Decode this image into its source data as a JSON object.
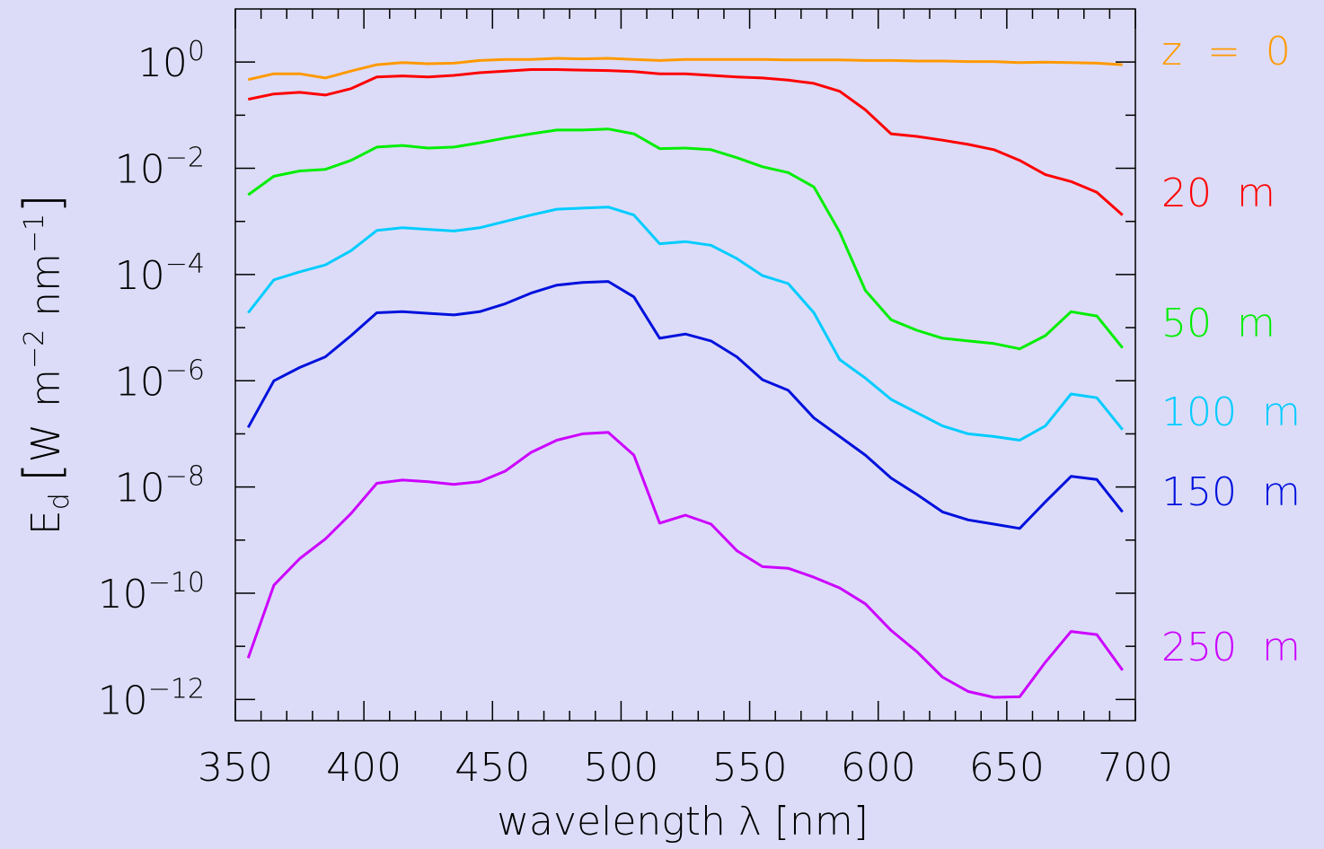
{
  "chart_data": {
    "type": "line",
    "xlabel": "wavelength λ [nm]",
    "ylabel": "E_d [W m^-2 nm^-1]",
    "ylabel_parts": {
      "main": "E",
      "sub": "d",
      "bracket_open": "[",
      "w": "W",
      "m": "m",
      "exp1": "−2",
      "nm": "nm",
      "exp2": "−1",
      "bracket_close": "]"
    },
    "xlim": [
      350,
      700
    ],
    "ylim_log10": [
      -12.4,
      1.0
    ],
    "y_scale": "log",
    "grid": false,
    "xticks": [
      350,
      400,
      450,
      500,
      550,
      600,
      650,
      700
    ],
    "xtick_labels": [
      "350",
      "400",
      "450",
      "500",
      "550",
      "600",
      "650",
      "700"
    ],
    "yticks_log10": [
      0,
      -2,
      -4,
      -6,
      -8,
      -10,
      -12
    ],
    "ytick_labels": [
      {
        "base": "10",
        "exp": "0"
      },
      {
        "base": "10",
        "exp": "−2"
      },
      {
        "base": "10",
        "exp": "−4"
      },
      {
        "base": "10",
        "exp": "−6"
      },
      {
        "base": "10",
        "exp": "−8"
      },
      {
        "base": "10",
        "exp": "−10"
      },
      {
        "base": "10",
        "exp": "−12"
      }
    ],
    "x": [
      355,
      365,
      375,
      385,
      395,
      405,
      415,
      425,
      435,
      445,
      455,
      465,
      475,
      485,
      495,
      505,
      515,
      525,
      535,
      545,
      555,
      565,
      575,
      585,
      595,
      605,
      615,
      625,
      635,
      645,
      655,
      665,
      675,
      685,
      695
    ],
    "series": [
      {
        "name": "z = 0",
        "color": "#ff9900",
        "log10_values": [
          -0.33,
          -0.22,
          -0.22,
          -0.3,
          -0.17,
          -0.05,
          -0.01,
          -0.03,
          -0.02,
          0.03,
          0.05,
          0.05,
          0.07,
          0.06,
          0.07,
          0.05,
          0.03,
          0.05,
          0.05,
          0.05,
          0.05,
          0.04,
          0.04,
          0.04,
          0.03,
          0.03,
          0.02,
          0.02,
          0.01,
          0.01,
          -0.01,
          0.0,
          -0.01,
          -0.02,
          -0.05
        ]
      },
      {
        "name": "20 m",
        "color": "#ff0000",
        "log10_values": [
          -0.7,
          -0.6,
          -0.57,
          -0.62,
          -0.5,
          -0.28,
          -0.26,
          -0.28,
          -0.25,
          -0.2,
          -0.17,
          -0.14,
          -0.14,
          -0.15,
          -0.16,
          -0.18,
          -0.22,
          -0.22,
          -0.25,
          -0.28,
          -0.3,
          -0.34,
          -0.4,
          -0.55,
          -0.9,
          -1.35,
          -1.4,
          -1.47,
          -1.55,
          -1.65,
          -1.85,
          -2.12,
          -2.25,
          -2.45,
          -2.88
        ]
      },
      {
        "name": "50 m",
        "color": "#00ee00",
        "log10_values": [
          -2.5,
          -2.15,
          -2.05,
          -2.02,
          -1.85,
          -1.6,
          -1.57,
          -1.62,
          -1.6,
          -1.52,
          -1.43,
          -1.35,
          -1.28,
          -1.28,
          -1.26,
          -1.35,
          -1.63,
          -1.62,
          -1.65,
          -1.8,
          -1.97,
          -2.08,
          -2.35,
          -3.2,
          -4.3,
          -4.85,
          -5.05,
          -5.2,
          -5.25,
          -5.3,
          -5.4,
          -5.15,
          -4.7,
          -4.78,
          -5.38
        ]
      },
      {
        "name": "100 m",
        "color": "#00ccff",
        "log10_values": [
          -4.72,
          -4.1,
          -3.95,
          -3.82,
          -3.55,
          -3.17,
          -3.12,
          -3.15,
          -3.18,
          -3.12,
          -3.0,
          -2.88,
          -2.77,
          -2.75,
          -2.73,
          -2.88,
          -3.42,
          -3.38,
          -3.45,
          -3.7,
          -4.02,
          -4.17,
          -4.72,
          -5.6,
          -5.95,
          -6.35,
          -6.6,
          -6.85,
          -7.0,
          -7.05,
          -7.12,
          -6.85,
          -6.25,
          -6.32,
          -6.92
        ]
      },
      {
        "name": "150 m",
        "color": "#0011dd",
        "log10_values": [
          -6.88,
          -6.0,
          -5.75,
          -5.55,
          -5.15,
          -4.72,
          -4.7,
          -4.73,
          -4.76,
          -4.7,
          -4.55,
          -4.35,
          -4.2,
          -4.15,
          -4.13,
          -4.42,
          -5.2,
          -5.12,
          -5.25,
          -5.55,
          -5.98,
          -6.18,
          -6.7,
          -7.05,
          -7.4,
          -7.83,
          -8.14,
          -8.47,
          -8.62,
          -8.7,
          -8.78,
          -8.28,
          -7.8,
          -7.86,
          -8.47
        ]
      },
      {
        "name": "250 m",
        "color": "#cc00ff",
        "log10_values": [
          -11.22,
          -9.85,
          -9.35,
          -8.98,
          -8.5,
          -7.93,
          -7.87,
          -7.9,
          -7.95,
          -7.9,
          -7.7,
          -7.35,
          -7.12,
          -7.0,
          -6.97,
          -7.4,
          -8.68,
          -8.53,
          -8.7,
          -9.2,
          -9.5,
          -9.53,
          -9.7,
          -9.9,
          -10.2,
          -10.7,
          -11.1,
          -11.58,
          -11.85,
          -11.96,
          -11.95,
          -11.3,
          -10.72,
          -10.78,
          -11.45
        ]
      }
    ],
    "annotations": [
      {
        "text": "z  =  0",
        "color": "#ff9900",
        "log10_y": 0.22
      },
      {
        "text": "20  m",
        "color": "#ff0000",
        "log10_y": -2.45
      },
      {
        "text": "50  m",
        "color": "#00ee00",
        "log10_y": -4.9
      },
      {
        "text": "100  m",
        "color": "#00ccff",
        "log10_y": -6.57
      },
      {
        "text": "150  m",
        "color": "#0011dd",
        "log10_y": -8.07
      },
      {
        "text": "250  m",
        "color": "#cc00ff",
        "log10_y": -11.0
      }
    ]
  }
}
